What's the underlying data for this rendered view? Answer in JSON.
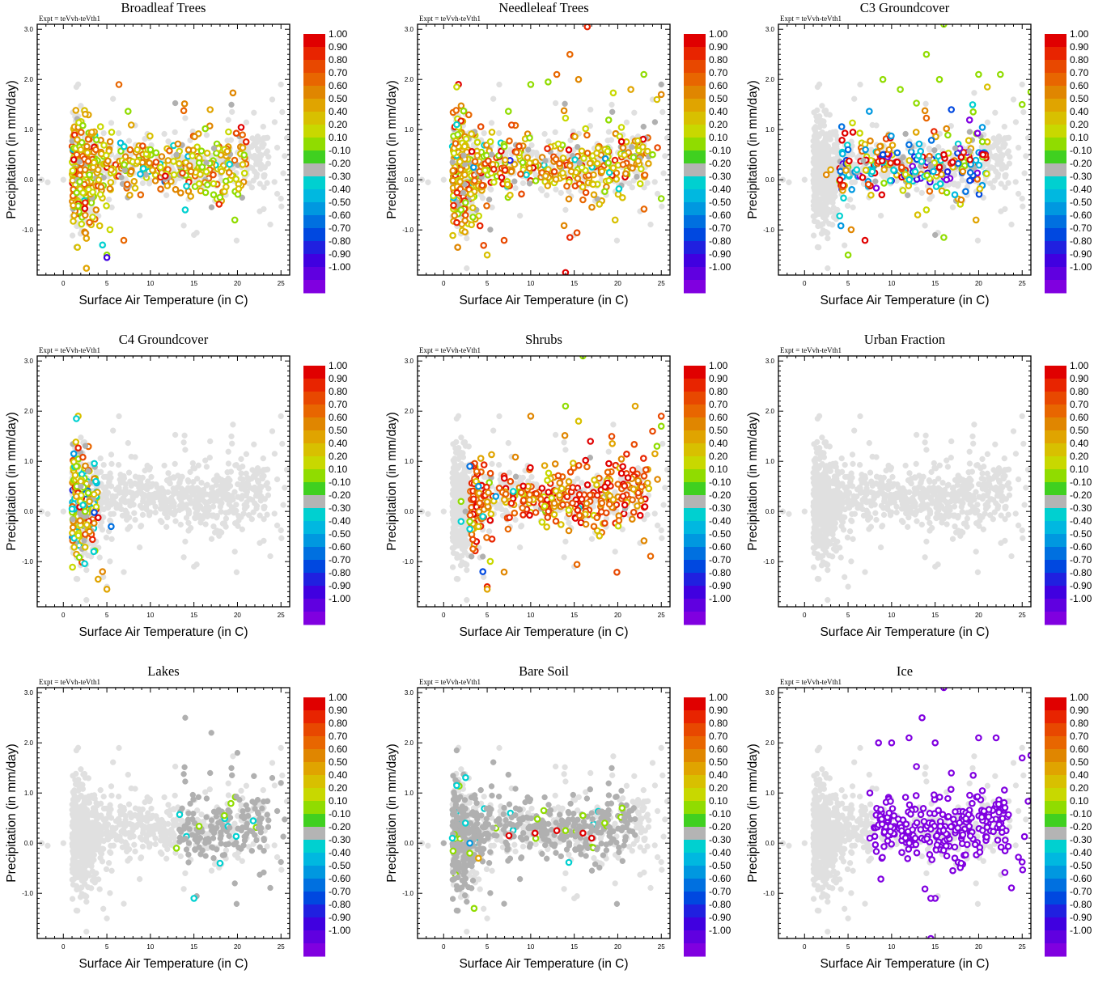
{
  "figure": {
    "annotation": "Expt = teVvh-teVth1",
    "xlabel": "Surface Air Temperature (in C)",
    "ylabel": "Precipitation (in mm/day)"
  },
  "colors": {
    "background_points": "#e0e0e0",
    "near_zero_points": "#b0b0b0",
    "colorbar": [
      "#e00000",
      "#e82400",
      "#e84800",
      "#e86600",
      "#e08600",
      "#e0a400",
      "#d8c000",
      "#c8d800",
      "#90dc00",
      "#40d020",
      "#b4b4b4",
      "#00d0d0",
      "#00b8e0",
      "#0098e0",
      "#0070e0",
      "#0048e0",
      "#2020e0",
      "#4000e0",
      "#6000e0",
      "#8000e0"
    ]
  },
  "chart_data": [
    {
      "type": "scatter",
      "title": "Broadleaf Trees",
      "xlabel": "Surface Air Temperature (in C)",
      "ylabel": "Precipitation (in mm/day)",
      "xlim": [
        -3,
        26
      ],
      "ylim": [
        -1.9,
        3.1
      ],
      "xticks": [
        "0",
        "5",
        "10",
        "15",
        "20",
        "25"
      ],
      "yticks": [
        "-1.0",
        "0.0",
        "1.0",
        "2.0",
        "3.0"
      ],
      "colorbar": {
        "labels": [
          "1.00",
          "0.90",
          "0.80",
          "0.70",
          "0.60",
          "0.50",
          "0.40",
          "0.20",
          "0.10",
          "-0.10",
          "-0.20",
          "-0.30",
          "-0.40",
          "-0.50",
          "-0.60",
          "-0.70",
          "-0.80",
          "-0.90",
          "-1.00"
        ]
      },
      "highlight": {
        "color_value": 0.35,
        "spread": 0.25,
        "x_range": [
          1,
          21
        ]
      },
      "points": [
        [
          1.2,
          0.4,
          0.9
        ],
        [
          1.6,
          0.8,
          0.5
        ],
        [
          2,
          0.6,
          0.3
        ],
        [
          2.5,
          0.2,
          0.6
        ],
        [
          3,
          0.1,
          0.2
        ],
        [
          4,
          0.2,
          0.4
        ],
        [
          5.5,
          0.2,
          0.5
        ],
        [
          7,
          0.3,
          0.2
        ],
        [
          8.5,
          0.6,
          0.3
        ],
        [
          10,
          0.6,
          0.2
        ],
        [
          13,
          0.5,
          0.1
        ],
        [
          18,
          -0.35,
          0.2
        ],
        [
          4.5,
          -1.3,
          -0.3
        ],
        [
          5,
          -1.55,
          -0.9
        ],
        [
          3,
          -0.85,
          0.7
        ]
      ]
    },
    {
      "type": "scatter",
      "title": "Needleleaf Trees",
      "xlabel": "Surface Air Temperature (in C)",
      "ylabel": "Precipitation (in mm/day)",
      "xlim": [
        -3,
        26
      ],
      "ylim": [
        -1.9,
        3.1
      ],
      "xticks": [
        "0",
        "5",
        "10",
        "15",
        "20",
        "25"
      ],
      "yticks": [
        "-1.0",
        "0.0",
        "1.0",
        "2.0",
        "3.0"
      ],
      "colorbar": {
        "labels": [
          "1.00",
          "0.90",
          "0.80",
          "0.70",
          "0.60",
          "0.50",
          "0.40",
          "0.20",
          "0.10",
          "-0.10",
          "-0.20",
          "-0.30",
          "-0.40",
          "-0.50",
          "-0.60",
          "-0.70",
          "-0.80",
          "-0.90",
          "-1.00"
        ]
      },
      "highlight": {
        "color_value": 0.4,
        "spread": 0.3,
        "x_range": [
          1,
          25
        ]
      },
      "points": [
        [
          14.5,
          -1.15,
          0.8
        ],
        [
          16,
          -0.4,
          0.7
        ],
        [
          14,
          -1.85,
          0.9
        ],
        [
          13,
          2.1,
          0.7
        ],
        [
          14.5,
          2.5,
          0.7
        ],
        [
          15.5,
          2.0,
          0.6
        ],
        [
          10,
          1.9,
          0.2
        ],
        [
          12,
          1.95,
          0.2
        ],
        [
          21.5,
          1.8,
          0.5
        ],
        [
          23,
          2.1,
          0.2
        ],
        [
          24.5,
          1.6,
          0.3
        ],
        [
          25,
          1.7,
          0.6
        ],
        [
          24,
          0.5,
          0.2
        ],
        [
          16.5,
          3.05,
          0.8
        ],
        [
          1.5,
          1.1,
          -0.3
        ],
        [
          2,
          -0.6,
          0.2
        ]
      ]
    },
    {
      "type": "scatter",
      "title": "C3 Groundcover",
      "xlabel": "Surface Air Temperature (in C)",
      "ylabel": "Precipitation (in mm/day)",
      "xlim": [
        -3,
        26
      ],
      "ylim": [
        -1.9,
        3.1
      ],
      "xticks": [
        "0",
        "5",
        "10",
        "15",
        "20",
        "25"
      ],
      "yticks": [
        "-1.0",
        "0.0",
        "1.0",
        "2.0",
        "3.0"
      ],
      "colorbar": {
        "labels": [
          "1.00",
          "0.90",
          "0.80",
          "0.70",
          "0.60",
          "0.50",
          "0.40",
          "0.20",
          "0.10",
          "-0.10",
          "-0.20",
          "-0.30",
          "-0.40",
          "-0.50",
          "-0.60",
          "-0.70",
          "-0.80",
          "-0.90",
          "-1.00"
        ]
      },
      "highlight": {
        "color_value": 0.1,
        "spread": 0.65,
        "x_range": [
          4,
          21
        ]
      },
      "points": [
        [
          16,
          0.5,
          0.95
        ],
        [
          17,
          0.35,
          0.95
        ],
        [
          18,
          0.45,
          0.9
        ],
        [
          19,
          0.4,
          0.95
        ],
        [
          20.5,
          0.5,
          0.95
        ],
        [
          15.5,
          0.25,
          0.9
        ],
        [
          2.5,
          0.1,
          0.6
        ],
        [
          3,
          0.2,
          0.5
        ],
        [
          14,
          2.5,
          0.2
        ],
        [
          15.5,
          2.0,
          0.2
        ],
        [
          16,
          3.1,
          0.2
        ],
        [
          20,
          2.1,
          0.2
        ],
        [
          21,
          1.85,
          0.3
        ],
        [
          22.5,
          2.1,
          0.2
        ],
        [
          9,
          2.0,
          0.2
        ],
        [
          11,
          1.8,
          0.2
        ],
        [
          16,
          -1.15,
          0.2
        ],
        [
          13,
          -0.7,
          0.3
        ],
        [
          5,
          0.6,
          -0.6
        ],
        [
          7,
          0.6,
          -0.5
        ],
        [
          9,
          0.5,
          -0.7
        ],
        [
          12,
          0.7,
          -0.6
        ],
        [
          6,
          0.2,
          -0.3
        ],
        [
          25,
          1.5,
          0.2
        ],
        [
          26,
          1.75,
          0.2
        ]
      ]
    },
    {
      "type": "scatter",
      "title": "C4 Groundcover",
      "xlabel": "Surface Air Temperature (in C)",
      "ylabel": "Precipitation (in mm/day)",
      "xlim": [
        -3,
        26
      ],
      "ylim": [
        -1.9,
        3.1
      ],
      "xticks": [
        "0",
        "5",
        "10",
        "15",
        "20",
        "25"
      ],
      "yticks": [
        "-1.0",
        "0.0",
        "1.0",
        "2.0",
        "3.0"
      ],
      "colorbar": {
        "labels": [
          "1.00",
          "0.90",
          "0.80",
          "0.70",
          "0.60",
          "0.50",
          "0.40",
          "0.20",
          "0.10",
          "-0.10",
          "-0.20",
          "-0.30",
          "-0.40",
          "-0.50",
          "-0.60",
          "-0.70",
          "-0.80",
          "-0.90",
          "-1.00"
        ]
      },
      "highlight": {
        "color_value": 0.2,
        "spread": 0.35,
        "x_range": [
          1,
          4
        ]
      },
      "points": [
        [
          1.2,
          1.15,
          -0.4
        ],
        [
          1.5,
          0.9,
          0.2
        ],
        [
          2,
          0.6,
          0.3
        ],
        [
          1.5,
          0.3,
          0.4
        ],
        [
          2.5,
          0.0,
          0.2
        ],
        [
          3,
          -0.4,
          0.6
        ],
        [
          3.5,
          -0.8,
          -0.2
        ],
        [
          4.5,
          -1.2,
          0.6
        ],
        [
          4,
          -1.35,
          0.4
        ],
        [
          5,
          -1.55,
          0.4
        ],
        [
          5.5,
          -0.3,
          -0.6
        ],
        [
          1,
          0.05,
          -0.3
        ],
        [
          2,
          0.5,
          0.1
        ],
        [
          3,
          0.2,
          0.5
        ]
      ]
    },
    {
      "type": "scatter",
      "title": "Shrubs",
      "xlabel": "Surface Air Temperature (in C)",
      "ylabel": "Precipitation (in mm/day)",
      "xlim": [
        -3,
        26
      ],
      "ylim": [
        -1.9,
        3.1
      ],
      "xticks": [
        "0",
        "5",
        "10",
        "15",
        "20",
        "25"
      ],
      "yticks": [
        "-1.0",
        "0.0",
        "1.0",
        "2.0",
        "3.0"
      ],
      "colorbar": {
        "labels": [
          "1.00",
          "0.90",
          "0.80",
          "0.70",
          "0.60",
          "0.50",
          "0.40",
          "0.20",
          "0.10",
          "-0.10",
          "-0.20",
          "-0.30",
          "-0.40",
          "-0.50",
          "-0.60",
          "-0.70",
          "-0.80",
          "-0.90",
          "-1.00"
        ]
      },
      "highlight": {
        "color_value": 0.65,
        "spread": 0.25,
        "x_range": [
          3,
          25
        ]
      },
      "points": [
        [
          2,
          0.2,
          0.2
        ],
        [
          2.5,
          0.0,
          0.1
        ],
        [
          3,
          -0.2,
          0.2
        ],
        [
          4,
          -0.3,
          0.3
        ],
        [
          2,
          -0.2,
          -0.2
        ],
        [
          3,
          -0.35,
          -0.2
        ],
        [
          4.5,
          -0.1,
          -0.3
        ],
        [
          4,
          0.5,
          -0.4
        ],
        [
          3,
          0.9,
          -0.6
        ],
        [
          4.5,
          -1.2,
          -0.7
        ],
        [
          5,
          -1.55,
          0.4
        ],
        [
          4.5,
          -0.9,
          0.1
        ],
        [
          14,
          2.1,
          0.2
        ],
        [
          15.5,
          1.8,
          0.3
        ],
        [
          16,
          3.1,
          0.2
        ],
        [
          10,
          1.9,
          0.6
        ],
        [
          22,
          2.1,
          0.5
        ],
        [
          25,
          1.7,
          0.2
        ],
        [
          24.5,
          1.3,
          0.2
        ],
        [
          6,
          0.3,
          -0.5
        ],
        [
          8,
          0.4,
          -0.2
        ]
      ]
    },
    {
      "type": "scatter",
      "title": "Urban Fraction",
      "xlabel": "Surface Air Temperature (in C)",
      "ylabel": "Precipitation (in mm/day)",
      "xlim": [
        -3,
        26
      ],
      "ylim": [
        -1.9,
        3.1
      ],
      "xticks": [
        "0",
        "5",
        "10",
        "15",
        "20",
        "25"
      ],
      "yticks": [
        "-1.0",
        "0.0",
        "1.0",
        "2.0",
        "3.0"
      ],
      "colorbar": {
        "labels": [
          "1.00",
          "0.90",
          "0.80",
          "0.70",
          "0.60",
          "0.50",
          "0.40",
          "0.20",
          "0.10",
          "-0.10",
          "-0.20",
          "-0.30",
          "-0.40",
          "-0.50",
          "-0.60",
          "-0.70",
          "-0.80",
          "-0.90",
          "-1.00"
        ]
      },
      "highlight": null,
      "points": []
    },
    {
      "type": "scatter",
      "title": "Lakes",
      "xlabel": "Surface Air Temperature (in C)",
      "ylabel": "Precipitation (in mm/day)",
      "xlim": [
        -3,
        26
      ],
      "ylim": [
        -1.9,
        3.1
      ],
      "xticks": [
        "0",
        "5",
        "10",
        "15",
        "20",
        "25"
      ],
      "yticks": [
        "-1.0",
        "0.0",
        "1.0",
        "2.0",
        "3.0"
      ],
      "colorbar": {
        "labels": [
          "1.00",
          "0.90",
          "0.80",
          "0.70",
          "0.60",
          "0.50",
          "0.40",
          "0.20",
          "0.10",
          "-0.10",
          "-0.20",
          "-0.30",
          "-0.40",
          "-0.50",
          "-0.60",
          "-0.70",
          "-0.80",
          "-0.90",
          "-1.00"
        ]
      },
      "highlight": {
        "color_value": 0.0,
        "spread": 0.05,
        "x_range": [
          13,
          26
        ]
      },
      "points": [
        [
          13,
          -0.1,
          0.15
        ],
        [
          18.5,
          0.55,
          0.2
        ],
        [
          14,
          2.5,
          0.0
        ],
        [
          17,
          2.2,
          0.0
        ],
        [
          24,
          1.3,
          0.0
        ],
        [
          20,
          1.8,
          0.0
        ],
        [
          22,
          0.8,
          0.0
        ],
        [
          25,
          1.2,
          0.0
        ]
      ]
    },
    {
      "type": "scatter",
      "title": "Bare Soil",
      "xlabel": "Surface Air Temperature (in C)",
      "ylabel": "Precipitation (in mm/day)",
      "xlim": [
        -3,
        26
      ],
      "ylim": [
        -1.9,
        3.1
      ],
      "xticks": [
        "0",
        "5",
        "10",
        "15",
        "20",
        "25"
      ],
      "yticks": [
        "-1.0",
        "0.0",
        "1.0",
        "2.0",
        "3.0"
      ],
      "colorbar": {
        "labels": [
          "1.00",
          "0.90",
          "0.80",
          "0.70",
          "0.60",
          "0.50",
          "0.40",
          "0.20",
          "0.10",
          "-0.10",
          "-0.20",
          "-0.30",
          "-0.40",
          "-0.50",
          "-0.60",
          "-0.70",
          "-0.80",
          "-0.90",
          "-1.00"
        ]
      },
      "highlight": {
        "color_value": 0.0,
        "spread": 0.05,
        "x_range": [
          0,
          22
        ]
      },
      "points": [
        [
          7.5,
          0.15,
          0.95
        ],
        [
          10.5,
          0.2,
          0.95
        ],
        [
          13,
          0.25,
          0.9
        ],
        [
          16,
          0.2,
          0.9
        ],
        [
          17,
          0.1,
          0.95
        ],
        [
          11.5,
          0.65,
          0.15
        ],
        [
          16,
          0.55,
          0.2
        ],
        [
          17,
          0.6,
          0.1
        ],
        [
          18.5,
          0.4,
          0.2
        ],
        [
          20.5,
          0.7,
          0.15
        ],
        [
          14,
          0.25,
          0.15
        ],
        [
          3,
          -0.2,
          0.15
        ],
        [
          4,
          -0.3,
          0.5
        ],
        [
          3.5,
          -1.3,
          0.2
        ],
        [
          1,
          0.1,
          -0.3
        ],
        [
          1.5,
          1.15,
          -0.25
        ],
        [
          2.5,
          0.4,
          -0.3
        ],
        [
          3,
          0.0,
          -0.5
        ]
      ]
    },
    {
      "type": "scatter",
      "title": "Ice",
      "xlabel": "Surface Air Temperature (in C)",
      "ylabel": "Precipitation (in mm/day)",
      "xlim": [
        -3,
        26
      ],
      "ylim": [
        -1.9,
        3.1
      ],
      "xticks": [
        "0",
        "5",
        "10",
        "15",
        "20",
        "25"
      ],
      "yticks": [
        "-1.0",
        "0.0",
        "1.0",
        "2.0",
        "3.0"
      ],
      "colorbar": {
        "labels": [
          "1.00",
          "0.90",
          "0.80",
          "0.70",
          "0.60",
          "0.50",
          "0.40",
          "0.20",
          "0.10",
          "-0.10",
          "-0.20",
          "-0.30",
          "-0.40",
          "-0.50",
          "-0.60",
          "-0.70",
          "-0.80",
          "-0.90",
          "-1.00"
        ]
      },
      "highlight": {
        "color_value": -1.0,
        "spread": 0.0,
        "x_range": [
          8,
          26
        ]
      },
      "points": [
        [
          8.5,
          2.0,
          -1
        ],
        [
          10,
          2.0,
          -1
        ],
        [
          12,
          2.1,
          -1
        ],
        [
          13.5,
          2.5,
          -1
        ],
        [
          15,
          2.0,
          -1
        ],
        [
          16,
          3.1,
          -1
        ],
        [
          14.5,
          -1.9,
          -1
        ],
        [
          14.5,
          -1.1,
          -1
        ],
        [
          20,
          2.1,
          -1
        ],
        [
          22,
          2.1,
          -1
        ],
        [
          25,
          1.7,
          -1
        ],
        [
          26,
          1.75,
          -1
        ],
        [
          7.5,
          1.0,
          -1
        ],
        [
          7.5,
          0.1,
          -1
        ]
      ]
    }
  ]
}
